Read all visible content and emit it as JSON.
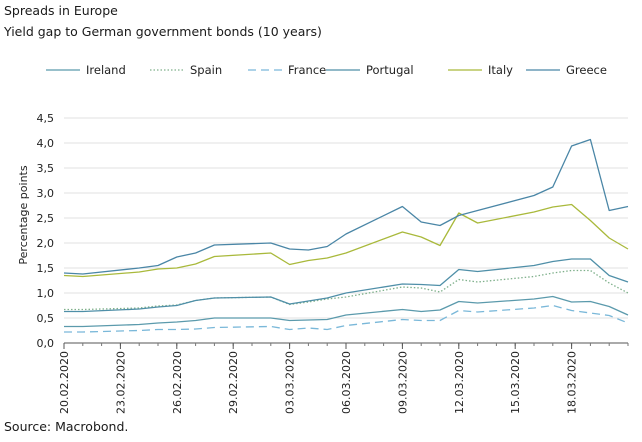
{
  "header": {
    "title": "Spreads in Europe",
    "subtitle": "Yield gap to German government bonds (10 years)"
  },
  "source": "Source: Macrobond.",
  "chart_data": {
    "type": "line",
    "ylabel": "Percentage points",
    "ylim": [
      0,
      4.5
    ],
    "yticks": [
      "0,0",
      "0,5",
      "1,0",
      "1,5",
      "2,0",
      "2,5",
      "3,0",
      "3,5",
      "4,0",
      "4,5"
    ],
    "xtick_labels": [
      "20.02.2020",
      "23.02.2020",
      "26.02.2020",
      "29.02.2020",
      "03.03.2020",
      "06.03.2020",
      "09.03.2020",
      "12.03.2020",
      "15.03.2020",
      "18.03.2020"
    ],
    "grid": "horizontal",
    "legend_position": "top",
    "x": [
      "20.02.2020",
      "21.02.2020",
      "24.02.2020",
      "25.02.2020",
      "26.02.2020",
      "27.02.2020",
      "28.02.2020",
      "02.03.2020",
      "03.03.2020",
      "04.03.2020",
      "05.03.2020",
      "06.03.2020",
      "09.03.2020",
      "10.03.2020",
      "11.03.2020",
      "12.03.2020",
      "13.03.2020",
      "16.03.2020",
      "17.03.2020",
      "18.03.2020",
      "19.03.2020",
      "20.03.2020",
      "21.03.2020"
    ],
    "series": [
      {
        "name": "Ireland",
        "color": "#5b9aac",
        "dash": "solid",
        "values": [
          0.33,
          0.33,
          0.37,
          0.4,
          0.42,
          0.45,
          0.5,
          0.5,
          0.45,
          0.46,
          0.47,
          0.56,
          0.67,
          0.63,
          0.66,
          0.83,
          0.8,
          0.88,
          0.93,
          0.82,
          0.83,
          0.73,
          0.56
        ]
      },
      {
        "name": "Spain",
        "color": "#7fb08b",
        "dash": "dotted",
        "values": [
          0.67,
          0.67,
          0.7,
          0.74,
          0.76,
          0.85,
          0.9,
          0.92,
          0.77,
          0.82,
          0.88,
          0.92,
          1.12,
          1.1,
          1.02,
          1.27,
          1.22,
          1.33,
          1.4,
          1.45,
          1.45,
          1.2,
          1.0
        ]
      },
      {
        "name": "France",
        "color": "#7ab8d9",
        "dash": "dashed",
        "values": [
          0.22,
          0.22,
          0.25,
          0.27,
          0.27,
          0.28,
          0.31,
          0.33,
          0.27,
          0.3,
          0.27,
          0.35,
          0.47,
          0.45,
          0.45,
          0.65,
          0.62,
          0.7,
          0.75,
          0.65,
          0.6,
          0.55,
          0.4
        ]
      },
      {
        "name": "Portugal",
        "color": "#4f8fa8",
        "dash": "solid",
        "values": [
          0.63,
          0.63,
          0.68,
          0.72,
          0.75,
          0.85,
          0.9,
          0.92,
          0.78,
          0.84,
          0.9,
          1.0,
          1.18,
          1.17,
          1.15,
          1.47,
          1.43,
          1.55,
          1.63,
          1.68,
          1.68,
          1.35,
          1.22
        ]
      },
      {
        "name": "Italy",
        "color": "#a9b93b",
        "dash": "solid",
        "values": [
          1.35,
          1.33,
          1.42,
          1.48,
          1.5,
          1.58,
          1.73,
          1.8,
          1.57,
          1.65,
          1.7,
          1.8,
          2.22,
          2.12,
          1.95,
          2.6,
          2.4,
          2.62,
          2.72,
          2.77,
          2.45,
          2.1,
          1.88
        ]
      },
      {
        "name": "Greece",
        "color": "#4a86a6",
        "dash": "solid",
        "values": [
          1.4,
          1.38,
          1.5,
          1.55,
          1.72,
          1.8,
          1.96,
          2.0,
          1.88,
          1.86,
          1.93,
          2.18,
          2.73,
          2.42,
          2.35,
          2.55,
          2.65,
          2.95,
          3.12,
          3.94,
          4.07,
          2.65,
          2.73
        ]
      }
    ]
  }
}
